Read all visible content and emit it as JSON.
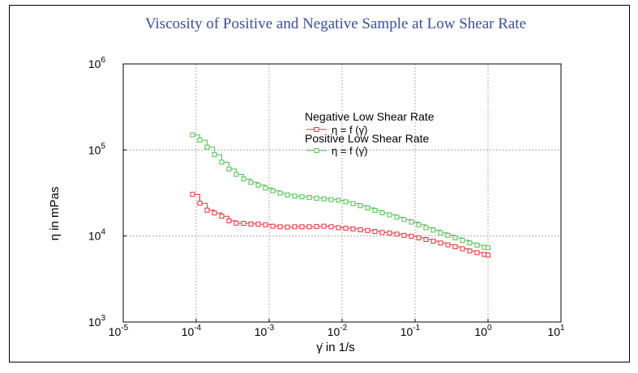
{
  "chart_data": {
    "type": "line",
    "title": "Viscosity of Positive and Negative Sample at Low Shear Rate",
    "xlabel": "γ̇ in 1/s",
    "ylabel": "η in mPas",
    "xscale": "log",
    "yscale": "log",
    "xlim": [
      1e-05,
      10
    ],
    "ylim": [
      1000,
      1000000
    ],
    "grid": true,
    "x_ticks": [
      {
        "base": "10",
        "exp": "-5"
      },
      {
        "base": "10",
        "exp": "-4"
      },
      {
        "base": "10",
        "exp": "-3"
      },
      {
        "base": "10",
        "exp": "-2"
      },
      {
        "base": "10",
        "exp": "-1"
      },
      {
        "base": "10",
        "exp": "0"
      },
      {
        "base": "10",
        "exp": "1"
      }
    ],
    "y_ticks": [
      {
        "base": "10",
        "exp": "3"
      },
      {
        "base": "10",
        "exp": "4"
      },
      {
        "base": "10",
        "exp": "5"
      },
      {
        "base": "10",
        "exp": "6"
      }
    ],
    "legend": {
      "position": "upper-right",
      "entries": [
        {
          "group": "Negative Low Shear Rate",
          "label": "η = f (γ̇)",
          "color": "#e0303a"
        },
        {
          "group": "Positive Low Shear Rate",
          "label": "η = f (γ̇)",
          "color": "#4cc24a"
        }
      ]
    },
    "series": [
      {
        "name": "Negative Low Shear Rate",
        "color": "#e0303a",
        "x_log": [
          -4.05,
          -3.95,
          -3.85,
          -3.75,
          -3.65,
          -3.55,
          -3.45,
          -3.35,
          -3.25,
          -3.15,
          -3.05,
          -2.95,
          -2.85,
          -2.75,
          -2.65,
          -2.55,
          -2.45,
          -2.35,
          -2.25,
          -2.15,
          -2.05,
          -1.95,
          -1.85,
          -1.75,
          -1.65,
          -1.55,
          -1.45,
          -1.35,
          -1.25,
          -1.15,
          -1.05,
          -0.95,
          -0.85,
          -0.75,
          -0.65,
          -0.55,
          -0.45,
          -0.35,
          -0.25,
          -0.15,
          -0.05,
          0.0
        ],
        "y": [
          30500,
          24000,
          20000,
          18500,
          17000,
          15000,
          14100,
          14000,
          13800,
          13700,
          13500,
          13000,
          12800,
          12700,
          12800,
          12800,
          12800,
          12900,
          13000,
          12800,
          12500,
          12300,
          12100,
          11800,
          11600,
          11300,
          11000,
          10800,
          10500,
          10200,
          9900,
          9500,
          9100,
          8700,
          8300,
          7900,
          7500,
          7100,
          6700,
          6400,
          6100,
          6000
        ]
      },
      {
        "name": "Positive Low Shear Rate",
        "color": "#4cc24a",
        "x_log": [
          -4.05,
          -3.95,
          -3.85,
          -3.75,
          -3.65,
          -3.55,
          -3.45,
          -3.35,
          -3.25,
          -3.15,
          -3.05,
          -2.95,
          -2.85,
          -2.75,
          -2.65,
          -2.55,
          -2.45,
          -2.35,
          -2.25,
          -2.15,
          -2.05,
          -1.95,
          -1.85,
          -1.75,
          -1.65,
          -1.55,
          -1.45,
          -1.35,
          -1.25,
          -1.15,
          -1.05,
          -0.95,
          -0.85,
          -0.75,
          -0.65,
          -0.55,
          -0.45,
          -0.35,
          -0.25,
          -0.15,
          -0.05,
          0.0
        ],
        "y": [
          150000,
          130000,
          108000,
          88000,
          72000,
          60000,
          52000,
          46000,
          42000,
          39000,
          36000,
          33500,
          31500,
          30000,
          29000,
          28500,
          28000,
          27500,
          27000,
          26500,
          26000,
          25000,
          23800,
          22500,
          21200,
          19800,
          18600,
          17600,
          16500,
          15500,
          14500,
          13500,
          12500,
          11700,
          10900,
          10200,
          9500,
          8900,
          8300,
          7800,
          7400,
          7300
        ]
      }
    ]
  }
}
